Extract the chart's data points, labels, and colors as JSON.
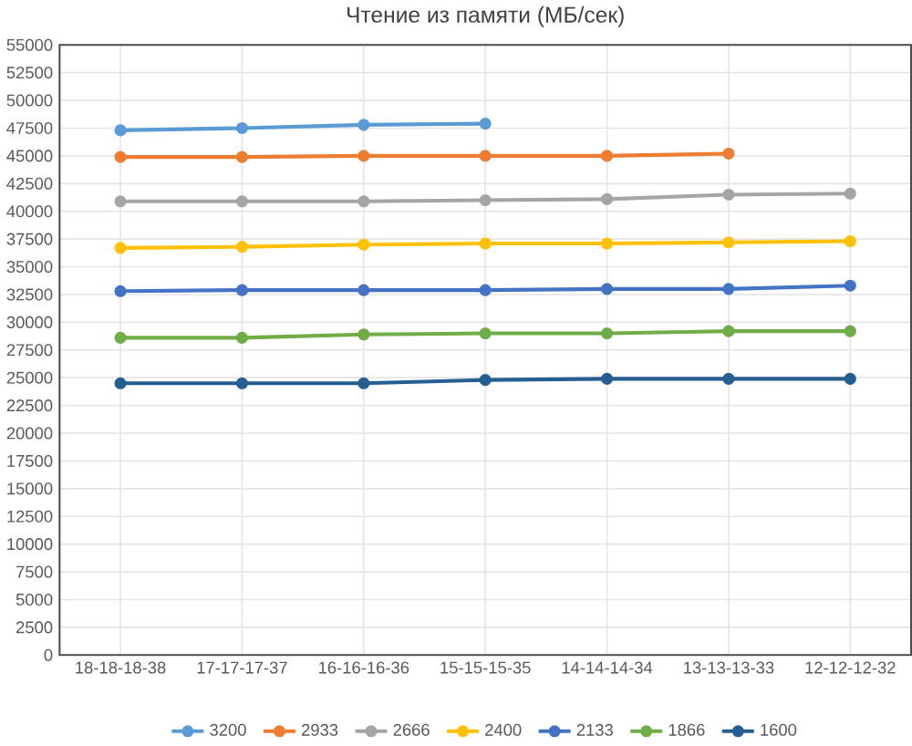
{
  "chart_data": {
    "type": "line",
    "title": "Чтение из памяти (МБ/сек)",
    "categories": [
      "18-18-18-38",
      "17-17-17-37",
      "16-16-16-36",
      "15-15-15-35",
      "14-14-14-34",
      "13-13-13-33",
      "12-12-12-32"
    ],
    "series": [
      {
        "name": "3200",
        "color": "#5b9bd5",
        "values": [
          47300,
          47500,
          47800,
          47900,
          null,
          null,
          null
        ]
      },
      {
        "name": "2933",
        "color": "#ed7d31",
        "values": [
          44900,
          44900,
          45000,
          45000,
          45000,
          45200,
          null
        ]
      },
      {
        "name": "2666",
        "color": "#a5a5a5",
        "values": [
          40900,
          40900,
          40900,
          41000,
          41100,
          41500,
          41600
        ]
      },
      {
        "name": "2400",
        "color": "#ffc000",
        "values": [
          36700,
          36800,
          37000,
          37100,
          37100,
          37200,
          37300
        ]
      },
      {
        "name": "2133",
        "color": "#4472c4",
        "values": [
          32800,
          32900,
          32900,
          32900,
          33000,
          33000,
          33300
        ]
      },
      {
        "name": "1866",
        "color": "#70ad47",
        "values": [
          28600,
          28600,
          28900,
          29000,
          29000,
          29200,
          29200
        ]
      },
      {
        "name": "1600",
        "color": "#255e91",
        "values": [
          24500,
          24500,
          24500,
          24800,
          24900,
          24900,
          24900
        ]
      }
    ],
    "ylim": [
      0,
      55000
    ],
    "yticks": [
      0,
      2500,
      5000,
      7500,
      10000,
      12500,
      15000,
      17500,
      20000,
      22500,
      25000,
      27500,
      30000,
      32500,
      35000,
      37500,
      40000,
      42500,
      45000,
      47500,
      50000,
      52500,
      55000
    ],
    "grid": true,
    "legend": "bottom",
    "marker": "circle",
    "line_style": "solid"
  }
}
